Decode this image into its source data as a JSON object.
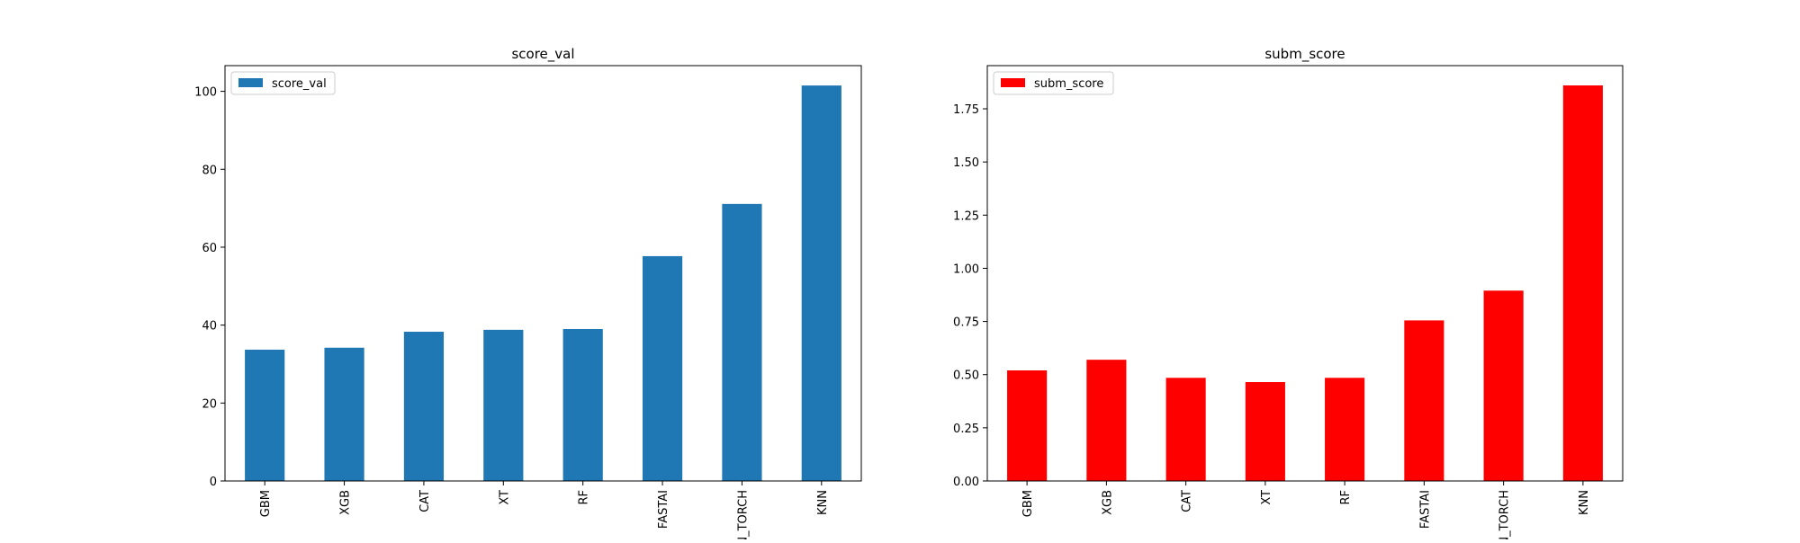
{
  "chart_data": [
    {
      "type": "bar",
      "title": "score_val",
      "categories": [
        "GBM",
        "XGB",
        "CAT",
        "XT",
        "RF",
        "FASTAI",
        "NN_TORCH",
        "KNN"
      ],
      "series": [
        {
          "name": "score_val",
          "values": [
            33.7,
            34.2,
            38.3,
            38.8,
            39.0,
            57.7,
            71.1,
            101.5
          ],
          "color": "#1f77b4"
        }
      ],
      "ylim": [
        0,
        106.6
      ],
      "yticks": [
        0,
        20,
        40,
        60,
        80,
        100
      ],
      "ytick_labels": [
        "0",
        "20",
        "40",
        "60",
        "80",
        "100"
      ],
      "legend": "top-left",
      "grid": false
    },
    {
      "type": "bar",
      "title": "subm_score",
      "categories": [
        "GBM",
        "XGB",
        "CAT",
        "XT",
        "RF",
        "FASTAI",
        "NN_TORCH",
        "KNN"
      ],
      "series": [
        {
          "name": "subm_score",
          "values": [
            0.52,
            0.57,
            0.485,
            0.465,
            0.485,
            0.755,
            0.895,
            1.86
          ],
          "color": "#ff0000"
        }
      ],
      "ylim": [
        0,
        1.953
      ],
      "yticks": [
        0,
        0.25,
        0.5,
        0.75,
        1.0,
        1.25,
        1.5,
        1.75
      ],
      "ytick_labels": [
        "0.00",
        "0.25",
        "0.50",
        "0.75",
        "1.00",
        "1.25",
        "1.50",
        "1.75"
      ],
      "legend": "top-left",
      "grid": false
    }
  ]
}
